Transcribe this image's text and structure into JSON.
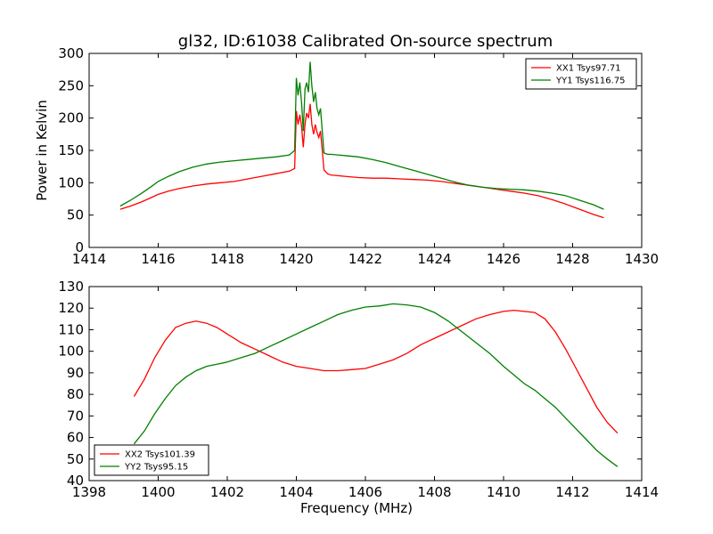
{
  "figure_title": "gl32, ID:61038 Calibrated On-source spectrum",
  "chart_data": [
    {
      "type": "line",
      "title": "gl32, ID:61038 Calibrated On-source spectrum",
      "xlabel": "",
      "ylabel": "Power in Kelvin",
      "xlim": [
        1414,
        1430
      ],
      "ylim": [
        0,
        300
      ],
      "xticks": [
        1414,
        1416,
        1418,
        1420,
        1422,
        1424,
        1426,
        1428,
        1430
      ],
      "yticks": [
        0,
        50,
        100,
        150,
        200,
        250,
        300
      ],
      "grid": false,
      "legend_position": "top-right",
      "series": [
        {
          "name": "XX1 Tsys97.71",
          "color": "#ff0000",
          "x": [
            1414.9,
            1415.2,
            1415.5,
            1415.8,
            1416.0,
            1416.3,
            1416.6,
            1417.0,
            1417.4,
            1417.8,
            1418.2,
            1418.6,
            1419.0,
            1419.4,
            1419.8,
            1419.95,
            1420.0,
            1420.05,
            1420.1,
            1420.15,
            1420.2,
            1420.25,
            1420.3,
            1420.35,
            1420.4,
            1420.45,
            1420.5,
            1420.55,
            1420.6,
            1420.65,
            1420.7,
            1420.75,
            1420.8,
            1420.9,
            1421.0,
            1421.4,
            1421.8,
            1422.2,
            1422.6,
            1423.0,
            1423.4,
            1423.8,
            1424.2,
            1424.6,
            1425.0,
            1425.4,
            1425.8,
            1426.2,
            1426.6,
            1427.0,
            1427.4,
            1427.8,
            1428.2,
            1428.6,
            1428.9
          ],
          "values": [
            59,
            64,
            70,
            77,
            82,
            87,
            91,
            95,
            98,
            100,
            102,
            106,
            110,
            114,
            118,
            122,
            211,
            190,
            205,
            188,
            155,
            190,
            208,
            200,
            222,
            190,
            175,
            190,
            178,
            170,
            180,
            150,
            120,
            114,
            112,
            110,
            108,
            107,
            107,
            106,
            105,
            104,
            102,
            99,
            96,
            93,
            90,
            87,
            84,
            80,
            74,
            67,
            59,
            51,
            46
          ]
        },
        {
          "name": "YY1 Tsys116.75",
          "color": "#008000",
          "x": [
            1414.9,
            1415.2,
            1415.5,
            1415.8,
            1416.0,
            1416.3,
            1416.6,
            1417.0,
            1417.4,
            1417.8,
            1418.2,
            1418.6,
            1419.0,
            1419.4,
            1419.8,
            1419.95,
            1420.0,
            1420.05,
            1420.1,
            1420.15,
            1420.2,
            1420.25,
            1420.3,
            1420.35,
            1420.4,
            1420.45,
            1420.5,
            1420.55,
            1420.6,
            1420.65,
            1420.7,
            1420.75,
            1420.8,
            1420.9,
            1421.0,
            1421.4,
            1421.8,
            1422.2,
            1422.6,
            1423.0,
            1423.4,
            1423.8,
            1424.2,
            1424.6,
            1425.0,
            1425.4,
            1425.8,
            1426.2,
            1426.6,
            1427.0,
            1427.4,
            1427.8,
            1428.2,
            1428.6,
            1428.9
          ],
          "values": [
            64,
            73,
            83,
            94,
            102,
            110,
            117,
            124,
            129,
            132,
            134,
            136,
            138,
            140,
            143,
            150,
            262,
            235,
            255,
            225,
            180,
            245,
            255,
            240,
            287,
            250,
            225,
            240,
            215,
            205,
            215,
            180,
            146,
            144,
            144,
            142,
            140,
            136,
            131,
            125,
            119,
            113,
            107,
            101,
            96,
            93,
            91,
            90,
            89,
            87,
            84,
            80,
            73,
            66,
            59
          ]
        }
      ]
    },
    {
      "type": "line",
      "title": "",
      "xlabel": "Frequency (MHz)",
      "ylabel": "",
      "xlim": [
        1398,
        1414
      ],
      "ylim": [
        40,
        130
      ],
      "xticks": [
        1398,
        1400,
        1402,
        1404,
        1406,
        1408,
        1410,
        1412,
        1414
      ],
      "yticks": [
        40,
        50,
        60,
        70,
        80,
        90,
        100,
        110,
        120,
        130
      ],
      "grid": false,
      "legend_position": "bottom-left",
      "series": [
        {
          "name": "XX2 Tsys101.39",
          "color": "#ff0000",
          "x": [
            1399.3,
            1399.6,
            1399.9,
            1400.2,
            1400.5,
            1400.8,
            1401.1,
            1401.4,
            1401.7,
            1402.0,
            1402.4,
            1402.8,
            1403.2,
            1403.6,
            1404.0,
            1404.4,
            1404.8,
            1405.2,
            1405.6,
            1406.0,
            1406.4,
            1406.8,
            1407.2,
            1407.6,
            1408.0,
            1408.4,
            1408.8,
            1409.2,
            1409.6,
            1410.0,
            1410.3,
            1410.6,
            1410.9,
            1411.2,
            1411.5,
            1411.8,
            1412.1,
            1412.4,
            1412.7,
            1413.0,
            1413.3
          ],
          "values": [
            79,
            87,
            97,
            105,
            111,
            113,
            114,
            113,
            111,
            108,
            104,
            101,
            98,
            95,
            93,
            92,
            91,
            91,
            91.5,
            92,
            94,
            96,
            99,
            103,
            106,
            109,
            112,
            115,
            117,
            118.5,
            119,
            118.5,
            118,
            115,
            109,
            101,
            92,
            83,
            74,
            67,
            62
          ]
        },
        {
          "name": "YY2 Tsys95.15",
          "color": "#008000",
          "x": [
            1399.3,
            1399.6,
            1399.9,
            1400.2,
            1400.5,
            1400.8,
            1401.1,
            1401.4,
            1401.7,
            1402.0,
            1402.4,
            1402.8,
            1403.2,
            1403.6,
            1404.0,
            1404.4,
            1404.8,
            1405.2,
            1405.6,
            1406.0,
            1406.4,
            1406.8,
            1407.2,
            1407.6,
            1408.0,
            1408.4,
            1408.8,
            1409.2,
            1409.6,
            1410.0,
            1410.3,
            1410.6,
            1410.9,
            1411.2,
            1411.5,
            1411.8,
            1412.1,
            1412.4,
            1412.7,
            1413.0,
            1413.3
          ],
          "values": [
            57,
            63,
            71,
            78,
            84,
            88,
            91,
            93,
            94,
            95,
            97,
            99,
            102,
            105,
            108,
            111,
            114,
            117,
            119,
            120.5,
            121,
            122,
            121.5,
            120.5,
            118,
            114,
            109,
            104,
            99,
            93,
            89,
            85,
            82,
            78,
            74,
            69,
            64,
            59,
            54,
            50,
            46.5
          ]
        }
      ]
    }
  ]
}
